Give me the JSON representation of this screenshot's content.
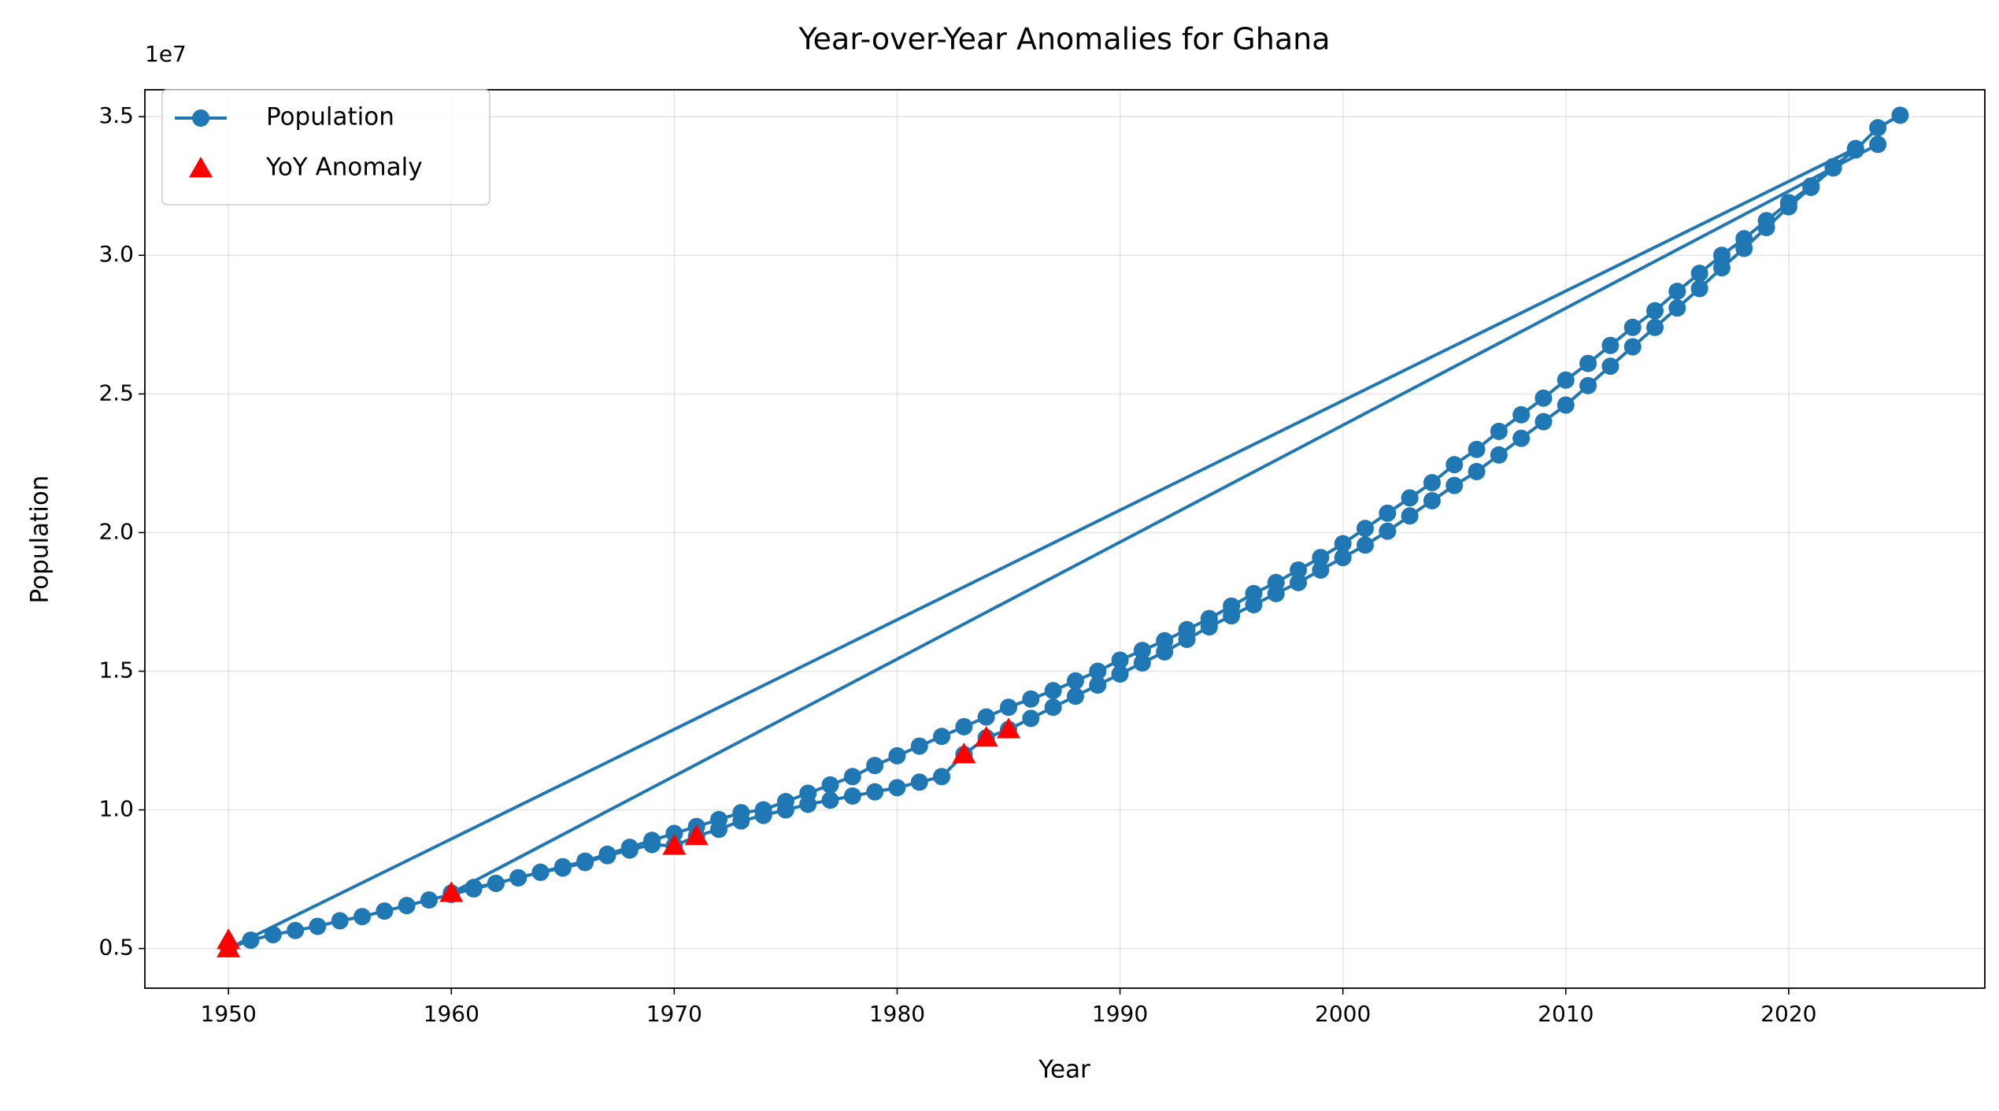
{
  "chart_data": {
    "type": "line",
    "title": "Year-over-Year Anomalies for Ghana",
    "x_label": "Year",
    "y_label": "Population",
    "y_offset_label": "1e7",
    "grid": true,
    "legend": "upper left",
    "xlim": [
      1946.25,
      2028.8
    ],
    "ylim": [
      0.357,
      3.597
    ],
    "xticks": [
      1950,
      1960,
      1970,
      1980,
      1990,
      2000,
      2010,
      2020
    ],
    "yticks": [
      0.5,
      {
        "value": 1,
        "label": "1.0"
      },
      1.5,
      {
        "value": 2,
        "label": "2.0"
      },
      2.5,
      {
        "value": 3,
        "label": "3.0"
      },
      3.5
    ],
    "series": [
      {
        "name": "Population",
        "color": "#1f77b4",
        "marker": "circle",
        "line": true,
        "x": [
          2024,
          1960,
          1961,
          1962,
          1963,
          1964,
          1965,
          1966,
          1967,
          1968,
          1969,
          1970,
          1971,
          1972,
          1973,
          1974,
          1975,
          1976,
          1977,
          1978,
          1979,
          1980,
          1981,
          1982,
          1983,
          1984,
          1985,
          1986,
          1987,
          1988,
          1989,
          1990,
          1991,
          1992,
          1993,
          1994,
          1995,
          1996,
          1997,
          1998,
          1999,
          2000,
          2001,
          2002,
          2003,
          2004,
          2005,
          2006,
          2007,
          2008,
          2009,
          2010,
          2011,
          2012,
          2013,
          2014,
          2015,
          2016,
          2017,
          2018,
          2019,
          2020,
          2021,
          2022,
          2023,
          1950,
          1951,
          1952,
          1953,
          1954,
          1955,
          1956,
          1957,
          1958,
          1959,
          1960,
          1961,
          1962,
          1963,
          1964,
          1965,
          1966,
          1967,
          1968,
          1969,
          1970,
          1971,
          1972,
          1973,
          1974,
          1975,
          1976,
          1977,
          1978,
          1979,
          1980,
          1981,
          1982,
          1983,
          1984,
          1985,
          1986,
          1987,
          1988,
          1989,
          1990,
          1991,
          1992,
          1993,
          1994,
          1995,
          1996,
          1997,
          1998,
          1999,
          2000,
          2001,
          2002,
          2003,
          2004,
          2005,
          2006,
          2007,
          2008,
          2009,
          2010,
          2011,
          2012,
          2013,
          2014,
          2015,
          2016,
          2017,
          2018,
          2019,
          2020,
          2021,
          2022,
          2023,
          2024,
          2025
        ],
        "values": [
          3.4,
          0.7,
          0.72,
          0.735,
          0.755,
          0.775,
          0.79,
          0.81,
          0.835,
          0.855,
          0.875,
          0.87,
          0.905,
          0.93,
          0.96,
          0.98,
          1.0,
          1.02,
          1.035,
          1.05,
          1.065,
          1.08,
          1.1,
          1.12,
          1.2,
          1.26,
          1.29,
          1.33,
          1.37,
          1.41,
          1.45,
          1.49,
          1.53,
          1.57,
          1.615,
          1.66,
          1.7,
          1.74,
          1.78,
          1.82,
          1.865,
          1.91,
          1.955,
          2.005,
          2.06,
          2.115,
          2.17,
          2.22,
          2.28,
          2.34,
          2.4,
          2.46,
          2.53,
          2.6,
          2.67,
          2.74,
          2.81,
          2.88,
          2.955,
          3.025,
          3.1,
          3.175,
          3.245,
          3.315,
          3.385,
          0.5,
          0.53,
          0.55,
          0.565,
          0.58,
          0.6,
          0.615,
          0.635,
          0.655,
          0.675,
          0.695,
          0.715,
          0.735,
          0.755,
          0.775,
          0.795,
          0.815,
          0.84,
          0.865,
          0.89,
          0.915,
          0.94,
          0.965,
          0.99,
          1.0,
          1.03,
          1.06,
          1.09,
          1.12,
          1.16,
          1.195,
          1.23,
          1.265,
          1.3,
          1.335,
          1.37,
          1.4,
          1.43,
          1.465,
          1.5,
          1.54,
          1.575,
          1.61,
          1.65,
          1.69,
          1.735,
          1.78,
          1.82,
          1.865,
          1.91,
          1.96,
          2.015,
          2.07,
          2.125,
          2.18,
          2.245,
          2.3,
          2.365,
          2.425,
          2.485,
          2.55,
          2.61,
          2.675,
          2.74,
          2.8,
          2.87,
          2.935,
          3.0,
          3.06,
          3.125,
          3.19,
          3.25,
          3.32,
          3.38,
          3.46,
          3.505
        ]
      },
      {
        "name": "YoY Anomaly",
        "color": "#ff0000",
        "marker": "triangle",
        "line": false,
        "x": [
          1950,
          1950,
          1960,
          1970,
          1971,
          1983,
          1984,
          1985
        ],
        "values": [
          0.5,
          0.53,
          0.7,
          0.87,
          0.905,
          1.2,
          1.26,
          1.29
        ]
      }
    ]
  }
}
